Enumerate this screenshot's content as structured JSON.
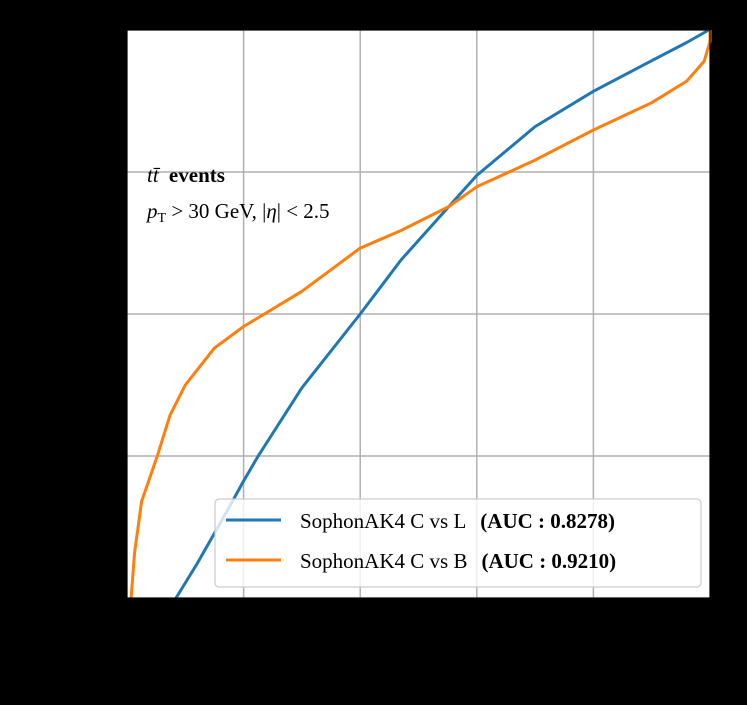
{
  "chart_data": {
    "type": "line",
    "title": "",
    "xlabel": "",
    "ylabel": "",
    "xlim": [
      0,
      1
    ],
    "ylim": [
      0,
      1
    ],
    "grid": true,
    "x_gridlines": [
      0.2,
      0.4,
      0.6,
      0.8
    ],
    "y_gridlines": [
      0.25,
      0.5,
      0.75
    ],
    "legend_position": "lower right",
    "annotations": [
      {
        "text_italic": "tt̄",
        "text_bold": " events"
      },
      {
        "text": "pT > 30 GeV, |η| < 2.5"
      }
    ],
    "series": [
      {
        "name": "SophonAK4 C vs L",
        "auc_label": "(AUC : 0.8278)",
        "color": "#1f77b4",
        "points": [
          [
            0.084,
            0.0
          ],
          [
            0.12,
            0.06
          ],
          [
            0.17,
            0.15
          ],
          [
            0.2,
            0.206
          ],
          [
            0.225,
            0.25
          ],
          [
            0.3,
            0.37
          ],
          [
            0.4,
            0.5
          ],
          [
            0.47,
            0.595
          ],
          [
            0.552,
            0.689
          ],
          [
            0.6,
            0.744
          ],
          [
            0.7,
            0.83
          ],
          [
            0.8,
            0.892
          ],
          [
            0.9,
            0.946
          ],
          [
            0.96,
            0.978
          ],
          [
            0.998,
            1.0
          ]
        ]
      },
      {
        "name": "SophonAK4 C vs B",
        "auc_label": "(AUC : 0.9210)",
        "color": "#ff7f0e",
        "points": [
          [
            0.007,
            0.0
          ],
          [
            0.013,
            0.08
          ],
          [
            0.025,
            0.17
          ],
          [
            0.052,
            0.25
          ],
          [
            0.074,
            0.322
          ],
          [
            0.1,
            0.375
          ],
          [
            0.15,
            0.44
          ],
          [
            0.2,
            0.478
          ],
          [
            0.3,
            0.54
          ],
          [
            0.4,
            0.616
          ],
          [
            0.47,
            0.647
          ],
          [
            0.552,
            0.689
          ],
          [
            0.6,
            0.724
          ],
          [
            0.7,
            0.771
          ],
          [
            0.8,
            0.824
          ],
          [
            0.9,
            0.872
          ],
          [
            0.96,
            0.91
          ],
          [
            0.99,
            0.945
          ],
          [
            1.0,
            0.98
          ],
          [
            1.0,
            1.0
          ]
        ]
      }
    ]
  },
  "annotation": {
    "line1_italic": "tt̄",
    "line1_bold": "events",
    "line2": "pT > 30 GeV, |η| < 2.5"
  },
  "legend": {
    "entries": [
      {
        "label": "SophonAK4 C vs L",
        "auc": "(AUC : 0.8278)",
        "color": "#1f77b4"
      },
      {
        "label": "SophonAK4 C vs B",
        "auc": "(AUC : 0.9210)",
        "color": "#ff7f0e"
      }
    ]
  },
  "style": {
    "background": "#000000",
    "plot_background": "#ffffff",
    "grid_color": "#b0b0b0",
    "legend_border": "#cccccc"
  }
}
